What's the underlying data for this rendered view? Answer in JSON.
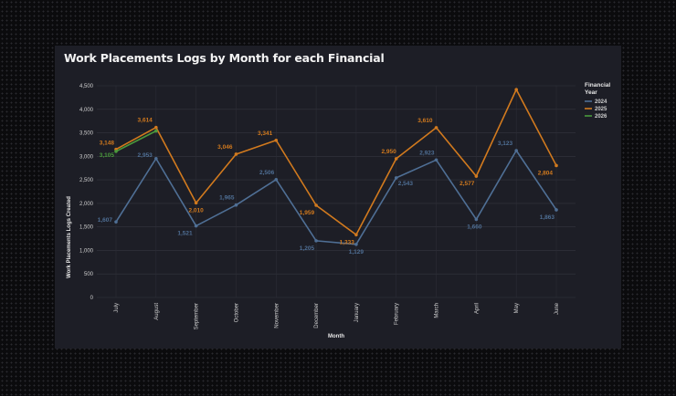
{
  "chart_data": {
    "type": "line",
    "title": "Work Placements Logs by Month for each Financial",
    "xlabel": "Month",
    "ylabel": "Work Placements Logs Created",
    "ylim": [
      0,
      4500
    ],
    "yticks": [
      0,
      500,
      1000,
      1500,
      2000,
      2500,
      3000,
      3500,
      4000,
      4500
    ],
    "yticklabels": [
      "0",
      "500",
      "1,000",
      "1,500",
      "2,000",
      "2,500",
      "3,000",
      "3,500",
      "4,000",
      "4,500"
    ],
    "categories": [
      "July",
      "August",
      "September",
      "October",
      "November",
      "December",
      "January",
      "February",
      "March",
      "April",
      "May",
      "June"
    ],
    "grid": true,
    "legend": {
      "title": "Financial Year",
      "placement": "right"
    },
    "series": [
      {
        "name": "2024",
        "color": "#4f6f95",
        "values": [
          1607,
          2953,
          1521,
          1965,
          2506,
          1205,
          1129,
          2543,
          2923,
          1660,
          3123,
          1863
        ],
        "labels": [
          "1,607",
          "2,953",
          "1,521",
          "1,965",
          "2,506",
          "1,205",
          "1,129",
          "2,543",
          "2,923",
          "1,660",
          "3,123",
          "1,863"
        ]
      },
      {
        "name": "2025",
        "color": "#d27a1e",
        "values": [
          3148,
          3614,
          2010,
          3046,
          3341,
          1959,
          1333,
          2950,
          3610,
          2577,
          4420,
          2804
        ],
        "labels": [
          "3,148",
          "3,614",
          "2,010",
          "3,046",
          "3,341",
          "1,959",
          "1,333",
          "2,950",
          "3,610",
          "2,577",
          null,
          "2,804"
        ]
      },
      {
        "name": "2026",
        "color": "#4a9a3c",
        "values": [
          3105,
          3540,
          null,
          null,
          null,
          null,
          null,
          null,
          null,
          null,
          null,
          null
        ],
        "labels": [
          "3,105",
          null,
          null,
          null,
          null,
          null,
          null,
          null,
          null,
          null,
          null,
          null
        ]
      }
    ]
  }
}
